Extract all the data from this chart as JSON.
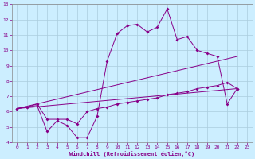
{
  "xlabel": "Windchill (Refroidissement éolien,°C)",
  "background_color": "#cceeff",
  "grid_color": "#aaccdd",
  "line_color": "#880088",
  "tick_color": "#880088",
  "spine_color": "#888888",
  "xlim": [
    -0.5,
    23.5
  ],
  "ylim": [
    4,
    13
  ],
  "xticks": [
    0,
    1,
    2,
    3,
    4,
    5,
    6,
    7,
    8,
    9,
    10,
    11,
    12,
    13,
    14,
    15,
    16,
    17,
    18,
    19,
    20,
    21,
    22,
    23
  ],
  "yticks": [
    4,
    5,
    6,
    7,
    8,
    9,
    10,
    11,
    12,
    13
  ],
  "series1_x": [
    0,
    1,
    2,
    3,
    4,
    5,
    6,
    7,
    8,
    9,
    10,
    11,
    12,
    13,
    14,
    15,
    16,
    17,
    18,
    19,
    20,
    21,
    22
  ],
  "series1_y": [
    6.2,
    6.3,
    6.4,
    4.7,
    5.4,
    5.1,
    4.3,
    4.3,
    5.7,
    9.3,
    11.1,
    11.6,
    11.7,
    11.2,
    11.5,
    12.7,
    10.7,
    10.9,
    10.0,
    9.8,
    9.6,
    6.5,
    7.5
  ],
  "series2_x": [
    0,
    1,
    2,
    3,
    4,
    5,
    6,
    7,
    8,
    9,
    10,
    11,
    12,
    13,
    14,
    15,
    16,
    17,
    18,
    19,
    20,
    21,
    22
  ],
  "series2_y": [
    6.2,
    6.3,
    6.5,
    5.5,
    5.5,
    5.5,
    5.2,
    6.0,
    6.2,
    6.3,
    6.5,
    6.6,
    6.7,
    6.8,
    6.9,
    7.1,
    7.2,
    7.3,
    7.5,
    7.6,
    7.7,
    7.9,
    7.5
  ],
  "series3_x": [
    0,
    22
  ],
  "series3_y": [
    6.2,
    7.5
  ],
  "series4_x": [
    0,
    22
  ],
  "series4_y": [
    6.2,
    9.6
  ]
}
